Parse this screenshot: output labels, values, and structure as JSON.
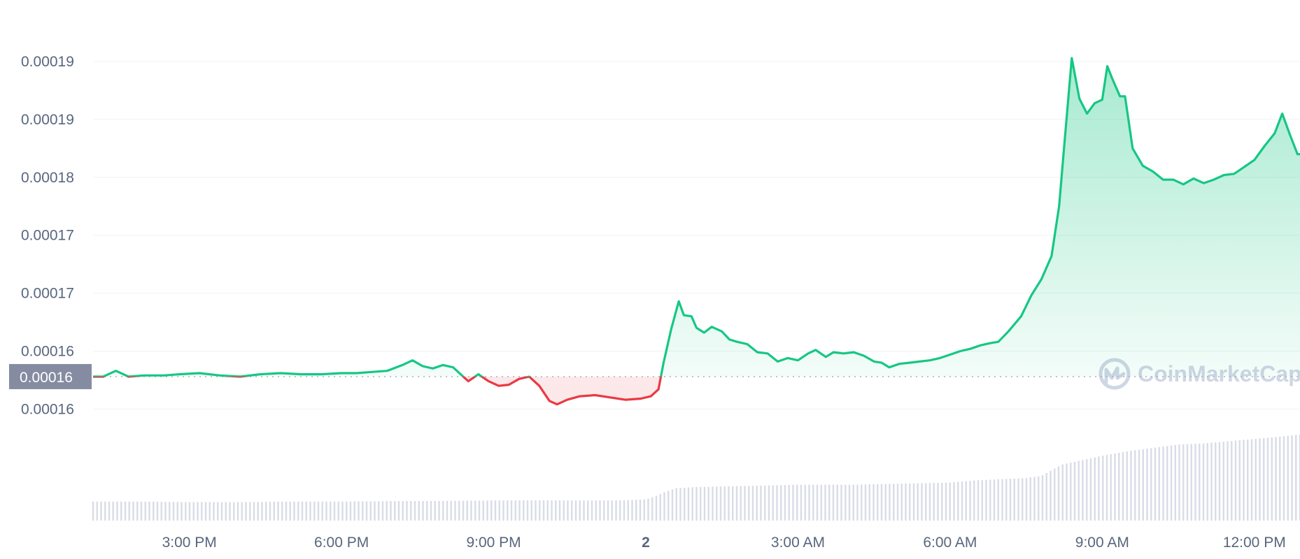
{
  "chart_data": {
    "type": "line",
    "y_tick_labels": [
      "0.00019",
      "0.00019",
      "0.00018",
      "0.00017",
      "0.00017",
      "0.00016",
      "0.00016"
    ],
    "y_tick_values": [
      0.000192,
      0.000187,
      0.000182,
      0.000177,
      0.000172,
      0.000167,
      0.000162
    ],
    "ylim": [
      0.0001578,
      0.0001955
    ],
    "baseline": {
      "label": "0.00016",
      "value": 0.0001648
    },
    "x_ticks": [
      {
        "label": "3:00 PM",
        "t": 3,
        "bold": false
      },
      {
        "label": "6:00 PM",
        "t": 6,
        "bold": false
      },
      {
        "label": "9:00 PM",
        "t": 9,
        "bold": false
      },
      {
        "label": "2",
        "t": 12,
        "bold": true
      },
      {
        "label": "3:00 AM",
        "t": 15,
        "bold": false
      },
      {
        "label": "6:00 AM",
        "t": 18,
        "bold": false
      },
      {
        "label": "9:00 AM",
        "t": 21,
        "bold": false
      },
      {
        "label": "12:00 PM",
        "t": 24,
        "bold": false
      }
    ],
    "x_unit": "hours after 12:00 PM",
    "xlim": [
      1.1,
      24.9
    ],
    "series": [
      {
        "colors": {
          "above": "#16c784",
          "below": "#ea3943"
        },
        "points": [
          [
            1.1,
            0.0001648
          ],
          [
            1.3,
            0.0001648
          ],
          [
            1.55,
            0.0001653
          ],
          [
            1.8,
            0.0001648
          ],
          [
            2.1,
            0.0001649
          ],
          [
            2.5,
            0.0001649
          ],
          [
            2.8,
            0.000165
          ],
          [
            3.2,
            0.0001651
          ],
          [
            3.6,
            0.0001649
          ],
          [
            4.0,
            0.0001648
          ],
          [
            4.4,
            0.000165
          ],
          [
            4.8,
            0.0001651
          ],
          [
            5.2,
            0.000165
          ],
          [
            5.6,
            0.000165
          ],
          [
            6.0,
            0.0001651
          ],
          [
            6.3,
            0.0001651
          ],
          [
            6.6,
            0.0001652
          ],
          [
            6.9,
            0.0001653
          ],
          [
            7.2,
            0.0001658
          ],
          [
            7.4,
            0.0001662
          ],
          [
            7.6,
            0.0001657
          ],
          [
            7.8,
            0.0001655
          ],
          [
            8.0,
            0.0001658
          ],
          [
            8.2,
            0.0001656
          ],
          [
            8.4,
            0.0001648
          ],
          [
            8.5,
            0.0001644
          ],
          [
            8.7,
            0.000165
          ],
          [
            8.9,
            0.0001644
          ],
          [
            9.1,
            0.000164
          ],
          [
            9.3,
            0.0001641
          ],
          [
            9.5,
            0.0001646
          ],
          [
            9.7,
            0.0001648
          ],
          [
            9.9,
            0.000164
          ],
          [
            10.1,
            0.0001627
          ],
          [
            10.25,
            0.0001624
          ],
          [
            10.45,
            0.0001628
          ],
          [
            10.7,
            0.0001631
          ],
          [
            11.0,
            0.0001632
          ],
          [
            11.3,
            0.000163
          ],
          [
            11.6,
            0.0001628
          ],
          [
            11.9,
            0.0001629
          ],
          [
            12.1,
            0.0001631
          ],
          [
            12.25,
            0.0001637
          ],
          [
            12.35,
            0.000166
          ],
          [
            12.5,
            0.0001689
          ],
          [
            12.65,
            0.0001713
          ],
          [
            12.75,
            0.0001701
          ],
          [
            12.9,
            0.00017
          ],
          [
            13.0,
            0.000169
          ],
          [
            13.15,
            0.0001686
          ],
          [
            13.3,
            0.0001691
          ],
          [
            13.5,
            0.0001687
          ],
          [
            13.65,
            0.000168
          ],
          [
            13.8,
            0.0001678
          ],
          [
            14.0,
            0.0001676
          ],
          [
            14.2,
            0.0001669
          ],
          [
            14.4,
            0.0001668
          ],
          [
            14.6,
            0.0001661
          ],
          [
            14.8,
            0.0001664
          ],
          [
            15.0,
            0.0001662
          ],
          [
            15.2,
            0.0001668
          ],
          [
            15.35,
            0.0001671
          ],
          [
            15.55,
            0.0001665
          ],
          [
            15.7,
            0.0001669
          ],
          [
            15.9,
            0.0001668
          ],
          [
            16.1,
            0.0001669
          ],
          [
            16.3,
            0.0001666
          ],
          [
            16.5,
            0.0001661
          ],
          [
            16.65,
            0.000166
          ],
          [
            16.8,
            0.0001656
          ],
          [
            17.0,
            0.0001659
          ],
          [
            17.2,
            0.000166
          ],
          [
            17.4,
            0.0001661
          ],
          [
            17.6,
            0.0001662
          ],
          [
            17.8,
            0.0001664
          ],
          [
            18.0,
            0.0001667
          ],
          [
            18.2,
            0.000167
          ],
          [
            18.4,
            0.0001672
          ],
          [
            18.6,
            0.0001675
          ],
          [
            18.8,
            0.0001677
          ],
          [
            18.95,
            0.0001678
          ],
          [
            19.15,
            0.0001687
          ],
          [
            19.4,
            0.00017
          ],
          [
            19.6,
            0.0001718
          ],
          [
            19.8,
            0.0001732
          ],
          [
            20.0,
            0.0001752
          ],
          [
            20.15,
            0.0001795
          ],
          [
            20.25,
            0.0001847
          ],
          [
            20.4,
            0.0001923
          ],
          [
            20.55,
            0.0001888
          ],
          [
            20.7,
            0.0001875
          ],
          [
            20.85,
            0.0001884
          ],
          [
            21.0,
            0.0001887
          ],
          [
            21.1,
            0.0001916
          ],
          [
            21.2,
            0.0001905
          ],
          [
            21.35,
            0.000189
          ],
          [
            21.45,
            0.000189
          ],
          [
            21.6,
            0.0001845
          ],
          [
            21.8,
            0.000183
          ],
          [
            22.0,
            0.0001825
          ],
          [
            22.2,
            0.0001818
          ],
          [
            22.4,
            0.0001818
          ],
          [
            22.6,
            0.0001814
          ],
          [
            22.8,
            0.0001819
          ],
          [
            23.0,
            0.0001815
          ],
          [
            23.2,
            0.0001818
          ],
          [
            23.4,
            0.0001822
          ],
          [
            23.6,
            0.0001823
          ],
          [
            23.8,
            0.0001829
          ],
          [
            24.0,
            0.0001835
          ],
          [
            24.2,
            0.0001847
          ],
          [
            24.4,
            0.0001858
          ],
          [
            24.55,
            0.0001875
          ],
          [
            24.7,
            0.0001857
          ],
          [
            24.85,
            0.000184
          ],
          [
            24.9,
            0.000184
          ]
        ]
      }
    ],
    "volume": {
      "color": "#d8dce6",
      "bars": [
        [
          1.1,
          0.17
        ],
        [
          2.0,
          0.17
        ],
        [
          3.0,
          0.165
        ],
        [
          4.0,
          0.165
        ],
        [
          5.0,
          0.17
        ],
        [
          6.0,
          0.17
        ],
        [
          7.0,
          0.175
        ],
        [
          8.0,
          0.175
        ],
        [
          9.0,
          0.18
        ],
        [
          10.0,
          0.18
        ],
        [
          11.0,
          0.18
        ],
        [
          11.5,
          0.18
        ],
        [
          12.0,
          0.19
        ],
        [
          12.2,
          0.22
        ],
        [
          12.4,
          0.26
        ],
        [
          12.6,
          0.29
        ],
        [
          13.0,
          0.3
        ],
        [
          14.0,
          0.31
        ],
        [
          15.0,
          0.32
        ],
        [
          16.0,
          0.32
        ],
        [
          17.0,
          0.33
        ],
        [
          18.0,
          0.34
        ],
        [
          18.5,
          0.36
        ],
        [
          19.0,
          0.37
        ],
        [
          19.5,
          0.38
        ],
        [
          19.8,
          0.4
        ],
        [
          20.0,
          0.45
        ],
        [
          20.2,
          0.5
        ],
        [
          20.5,
          0.53
        ],
        [
          21.0,
          0.58
        ],
        [
          21.5,
          0.62
        ],
        [
          22.0,
          0.65
        ],
        [
          22.5,
          0.68
        ],
        [
          23.0,
          0.69
        ],
        [
          23.5,
          0.71
        ],
        [
          24.0,
          0.73
        ],
        [
          24.5,
          0.75
        ],
        [
          24.9,
          0.77
        ]
      ]
    }
  },
  "watermark": {
    "text": "CoinMarketCap",
    "icon": "coinmarketcap-logo-icon"
  }
}
